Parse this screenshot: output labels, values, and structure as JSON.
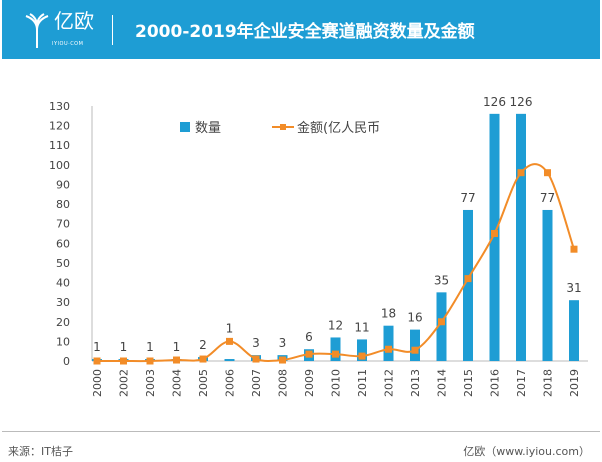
{
  "header": {
    "logo_text": "亿欧",
    "logo_sub": "IYIOU·COM",
    "title": "2000-2019年企业安全赛道融资数量及金额"
  },
  "footer": {
    "source": "来源：IT桔子",
    "brand": "亿欧（www.iyiou.com）"
  },
  "colors": {
    "header": "#1e9dd4",
    "bar": "#1e9dd4",
    "line": "#f28c28"
  },
  "chart_data": {
    "type": "bar+line",
    "categories": [
      "2000",
      "2002",
      "2003",
      "2004",
      "2005",
      "2006",
      "2007",
      "2008",
      "2009",
      "2010",
      "2011",
      "2012",
      "2013",
      "2014",
      "2015",
      "2016",
      "2017",
      "2018",
      "2019"
    ],
    "series": [
      {
        "name": "数量",
        "type": "bar",
        "values": [
          1,
          1,
          1,
          1,
          2,
          1,
          3,
          3,
          6,
          12,
          11,
          18,
          16,
          35,
          77,
          126,
          126,
          77,
          31
        ]
      },
      {
        "name": "金额(亿人民币",
        "type": "line",
        "values": [
          0,
          0,
          0,
          0.5,
          1,
          10,
          1,
          0.5,
          3.5,
          3.5,
          2.5,
          6,
          5.5,
          20,
          42,
          65,
          96,
          96,
          57
        ]
      }
    ],
    "yticks": [
      0,
      10,
      20,
      30,
      40,
      50,
      60,
      70,
      80,
      90,
      100,
      110,
      120,
      130
    ],
    "ylim": [
      0,
      130
    ],
    "grid": false,
    "legend": "top"
  }
}
